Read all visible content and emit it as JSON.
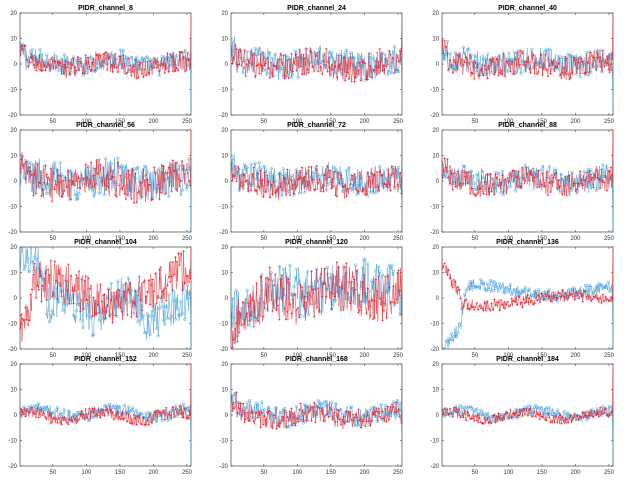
{
  "figure": {
    "rows": 4,
    "cols": 3,
    "colors": {
      "blue": "#3a9ad9",
      "red": "#e8232a",
      "axis": "#262626"
    }
  },
  "chart_data": [
    {
      "type": "line",
      "title": "PIDR_channel_8",
      "xlim": [
        1,
        256
      ],
      "ylim": [
        -20,
        20
      ],
      "xticks": [
        50,
        100,
        150,
        200,
        250
      ],
      "yticks": [
        -20,
        -10,
        0,
        10,
        20
      ],
      "pattern": "stable",
      "series": [
        {
          "color": "#3a9ad9",
          "marker": "circle",
          "spread": 2.5,
          "end_value": -20
        },
        {
          "color": "#e8232a",
          "marker": "star",
          "spread": 2.5,
          "end_value": 20
        }
      ]
    },
    {
      "type": "line",
      "title": "PIDR_channel_24",
      "xlim": [
        1,
        256
      ],
      "ylim": [
        -20,
        20
      ],
      "xticks": [
        50,
        100,
        150,
        200,
        250
      ],
      "yticks": [
        -20,
        -10,
        0,
        10,
        20
      ],
      "pattern": "stable",
      "series": [
        {
          "color": "#3a9ad9",
          "marker": "circle",
          "spread": 3.5,
          "end_value": -20
        },
        {
          "color": "#e8232a",
          "marker": "star",
          "spread": 3.5,
          "end_value": 20
        }
      ]
    },
    {
      "type": "line",
      "title": "PIDR_channel_40",
      "xlim": [
        1,
        256
      ],
      "ylim": [
        -20,
        20
      ],
      "xticks": [
        50,
        100,
        150,
        200,
        250
      ],
      "yticks": [
        -20,
        -10,
        0,
        10,
        20
      ],
      "pattern": "stable",
      "series": [
        {
          "color": "#3a9ad9",
          "marker": "circle",
          "spread": 3.0,
          "end_value": -20
        },
        {
          "color": "#e8232a",
          "marker": "star",
          "spread": 3.0,
          "end_value": 20
        }
      ]
    },
    {
      "type": "line",
      "title": "PIDR_channel_56",
      "xlim": [
        1,
        256
      ],
      "ylim": [
        -20,
        20
      ],
      "xticks": [
        50,
        100,
        150,
        200,
        250
      ],
      "yticks": [
        -20,
        -10,
        0,
        10,
        20
      ],
      "pattern": "stable",
      "series": [
        {
          "color": "#3a9ad9",
          "marker": "circle",
          "spread": 4.5,
          "end_value": -20
        },
        {
          "color": "#e8232a",
          "marker": "star",
          "spread": 4.5,
          "end_value": 20
        }
      ]
    },
    {
      "type": "line",
      "title": "PIDR_channel_72",
      "xlim": [
        1,
        256
      ],
      "ylim": [
        -20,
        20
      ],
      "xticks": [
        50,
        100,
        150,
        200,
        250
      ],
      "yticks": [
        -20,
        -10,
        0,
        10,
        20
      ],
      "pattern": "stable",
      "series": [
        {
          "color": "#3a9ad9",
          "marker": "circle",
          "spread": 3.5,
          "end_value": -20
        },
        {
          "color": "#e8232a",
          "marker": "star",
          "spread": 3.5,
          "end_value": 20
        }
      ]
    },
    {
      "type": "line",
      "title": "PIDR_channel_88",
      "xlim": [
        1,
        256
      ],
      "ylim": [
        -20,
        20
      ],
      "xticks": [
        50,
        100,
        150,
        200,
        250
      ],
      "yticks": [
        -20,
        -10,
        0,
        10,
        20
      ],
      "pattern": "stable",
      "series": [
        {
          "color": "#3a9ad9",
          "marker": "circle",
          "spread": 3.0,
          "end_value": -20
        },
        {
          "color": "#e8232a",
          "marker": "star",
          "spread": 3.0,
          "end_value": 20
        }
      ]
    },
    {
      "type": "line",
      "title": "PIDR_channel_104",
      "xlim": [
        1,
        256
      ],
      "ylim": [
        -20,
        20
      ],
      "xticks": [
        50,
        100,
        150,
        200,
        250
      ],
      "yticks": [
        -20,
        -10,
        0,
        10,
        20
      ],
      "pattern": "ch104",
      "series": [
        {
          "color": "#3a9ad9",
          "marker": "circle",
          "spread": 5.0,
          "end_value": -20
        },
        {
          "color": "#e8232a",
          "marker": "star",
          "spread": 5.0,
          "end_value": 20
        }
      ]
    },
    {
      "type": "line",
      "title": "PIDR_channel_120",
      "xlim": [
        1,
        256
      ],
      "ylim": [
        -20,
        20
      ],
      "xticks": [
        50,
        100,
        150,
        200,
        250
      ],
      "yticks": [
        -20,
        -10,
        0,
        10,
        20
      ],
      "pattern": "ch120",
      "series": [
        {
          "color": "#3a9ad9",
          "marker": "circle",
          "spread": 6.0,
          "end_value": -20
        },
        {
          "color": "#e8232a",
          "marker": "star",
          "spread": 6.0,
          "end_value": 20
        }
      ]
    },
    {
      "type": "line",
      "title": "PIDR_channel_136",
      "xlim": [
        1,
        256
      ],
      "ylim": [
        -20,
        20
      ],
      "xticks": [
        50,
        100,
        150,
        200,
        250
      ],
      "yticks": [
        -20,
        -10,
        0,
        10,
        20
      ],
      "pattern": "ch136",
      "series": [
        {
          "color": "#3a9ad9",
          "marker": "circle",
          "spread": 1.5,
          "end_value": -20
        },
        {
          "color": "#e8232a",
          "marker": "star",
          "spread": 1.5,
          "end_value": 20
        }
      ]
    },
    {
      "type": "line",
      "title": "PIDR_channel_152",
      "xlim": [
        1,
        256
      ],
      "ylim": [
        -20,
        20
      ],
      "xticks": [
        50,
        100,
        150,
        200,
        250
      ],
      "yticks": [
        -20,
        -10,
        0,
        10,
        20
      ],
      "pattern": "stable",
      "series": [
        {
          "color": "#3a9ad9",
          "marker": "circle",
          "spread": 1.5,
          "end_value": -20
        },
        {
          "color": "#e8232a",
          "marker": "star",
          "spread": 1.5,
          "end_value": 20
        }
      ]
    },
    {
      "type": "line",
      "title": "PIDR_channel_168",
      "xlim": [
        1,
        256
      ],
      "ylim": [
        -20,
        20
      ],
      "xticks": [
        50,
        100,
        150,
        200,
        250
      ],
      "yticks": [
        -20,
        -10,
        0,
        10,
        20
      ],
      "pattern": "stable",
      "series": [
        {
          "color": "#3a9ad9",
          "marker": "circle",
          "spread": 2.5,
          "end_value": -20
        },
        {
          "color": "#e8232a",
          "marker": "star",
          "spread": 2.5,
          "end_value": 20
        }
      ]
    },
    {
      "type": "line",
      "title": "PIDR_channel_184",
      "xlim": [
        1,
        256
      ],
      "ylim": [
        -20,
        20
      ],
      "xticks": [
        50,
        100,
        150,
        200,
        250
      ],
      "yticks": [
        -20,
        -10,
        0,
        10,
        20
      ],
      "pattern": "stable",
      "series": [
        {
          "color": "#3a9ad9",
          "marker": "circle",
          "spread": 1.2,
          "end_value": -20
        },
        {
          "color": "#e8232a",
          "marker": "star",
          "spread": 1.2,
          "end_value": 20
        }
      ]
    }
  ]
}
